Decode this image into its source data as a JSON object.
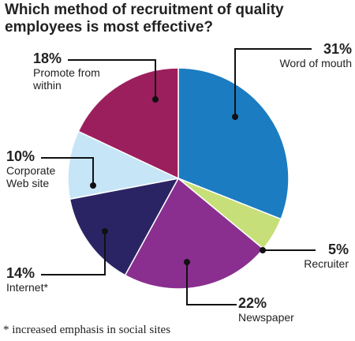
{
  "chart_data": {
    "type": "pie",
    "title": "Which method of recruitment of quality employees is most effective?",
    "categories": [
      "Word of mouth",
      "Recruiter",
      "Newspaper",
      "Internet*",
      "Corporate Web site",
      "Promote from within"
    ],
    "values": [
      31,
      5,
      22,
      14,
      10,
      18
    ],
    "value_labels": [
      "31%",
      "5%",
      "22%",
      "14%",
      "10%",
      "18%"
    ],
    "colors": [
      "#1b7cc1",
      "#c7df78",
      "#8a2f8f",
      "#2b2464",
      "#c6e5f7",
      "#9c1f5d"
    ],
    "footnote": "* increased emphasis in social sites"
  }
}
